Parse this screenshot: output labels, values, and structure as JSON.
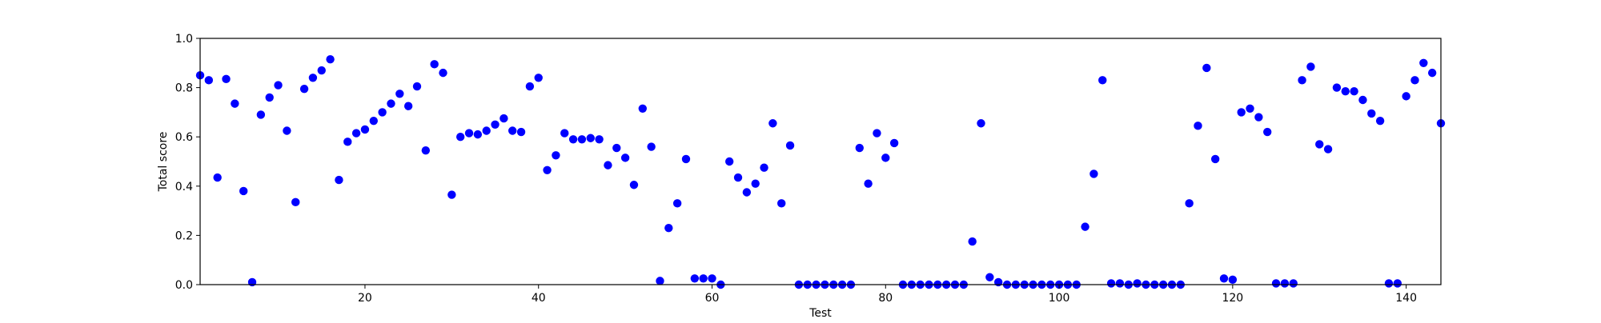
{
  "chart_data": {
    "type": "scatter",
    "title": "",
    "xlabel": "Test",
    "ylabel": "Total score",
    "xlim": [
      1,
      144
    ],
    "ylim": [
      0.0,
      1.0
    ],
    "x_ticks": [
      20,
      40,
      60,
      80,
      100,
      120,
      140
    ],
    "y_ticks": [
      0.0,
      0.2,
      0.4,
      0.6,
      0.8,
      1.0
    ],
    "x_tick_labels": [
      "20",
      "40",
      "60",
      "80",
      "100",
      "120",
      "140"
    ],
    "y_tick_labels": [
      "0.0",
      "0.2",
      "0.4",
      "0.6",
      "0.8",
      "1.0"
    ],
    "grid": false,
    "marker_color": "#0000ff",
    "series": [
      {
        "x": [
          1,
          2,
          3,
          4,
          5,
          6,
          7,
          8,
          9,
          10,
          11,
          12,
          13,
          14,
          15,
          16,
          17,
          18,
          19,
          20,
          21,
          22,
          23,
          24,
          25,
          26,
          27,
          28,
          29,
          30,
          31,
          32,
          33,
          34,
          35,
          36,
          37,
          38,
          39,
          40,
          41,
          42,
          43,
          44,
          45,
          46,
          47,
          48,
          49,
          50,
          51,
          52,
          53,
          54,
          55,
          56,
          57,
          58,
          59,
          60,
          61,
          62,
          63,
          64,
          65,
          66,
          67,
          68,
          69,
          70,
          71,
          72,
          73,
          74,
          75,
          76,
          77,
          78,
          79,
          80,
          81,
          82,
          83,
          84,
          85,
          86,
          87,
          88,
          89,
          90,
          91,
          92,
          93,
          94,
          95,
          96,
          97,
          98,
          99,
          100,
          101,
          102,
          103,
          104,
          105,
          106,
          107,
          108,
          109,
          110,
          111,
          112,
          113,
          114,
          115,
          116,
          117,
          118,
          119,
          120,
          121,
          122,
          123,
          124,
          125,
          126,
          127,
          128,
          129,
          130,
          131,
          132,
          133,
          134,
          135,
          136,
          137,
          138,
          139,
          140,
          141,
          142,
          143,
          144
        ],
        "values": [
          0.85,
          0.83,
          0.435,
          0.835,
          0.735,
          0.38,
          0.01,
          0.69,
          0.76,
          0.81,
          0.625,
          0.335,
          0.795,
          0.84,
          0.87,
          0.915,
          0.425,
          0.58,
          0.615,
          0.63,
          0.665,
          0.7,
          0.735,
          0.775,
          0.725,
          0.805,
          0.545,
          0.895,
          0.86,
          0.365,
          0.6,
          0.615,
          0.61,
          0.625,
          0.65,
          0.675,
          0.625,
          0.62,
          0.805,
          0.84,
          0.465,
          0.525,
          0.615,
          0.59,
          0.59,
          0.595,
          0.59,
          0.485,
          0.555,
          0.515,
          0.405,
          0.715,
          0.56,
          0.015,
          0.23,
          0.33,
          0.51,
          0.025,
          0.025,
          0.025,
          0.0,
          0.5,
          0.435,
          0.375,
          0.41,
          0.475,
          0.655,
          0.33,
          0.565,
          0.0,
          0.0,
          0.0,
          0.0,
          0.0,
          0.0,
          0.0,
          0.555,
          0.41,
          0.615,
          0.515,
          0.575,
          0.0,
          0.0,
          0.0,
          0.0,
          0.0,
          0.0,
          0.0,
          0.0,
          0.175,
          0.655,
          0.03,
          0.01,
          0.0,
          0.0,
          0.0,
          0.0,
          0.0,
          0.0,
          0.0,
          0.0,
          0.0,
          0.235,
          0.45,
          0.83,
          0.005,
          0.005,
          0.0,
          0.005,
          0.0,
          0.0,
          0.0,
          0.0,
          0.0,
          0.33,
          0.645,
          0.88,
          0.51,
          0.025,
          0.02,
          0.7,
          0.715,
          0.68,
          0.62,
          0.005,
          0.005,
          0.005,
          0.83,
          0.885,
          0.57,
          0.55,
          0.8,
          0.785,
          0.785,
          0.75,
          0.695,
          0.665,
          0.005,
          0.005,
          0.765,
          0.83,
          0.9,
          0.86,
          0.655
        ]
      }
    ]
  }
}
